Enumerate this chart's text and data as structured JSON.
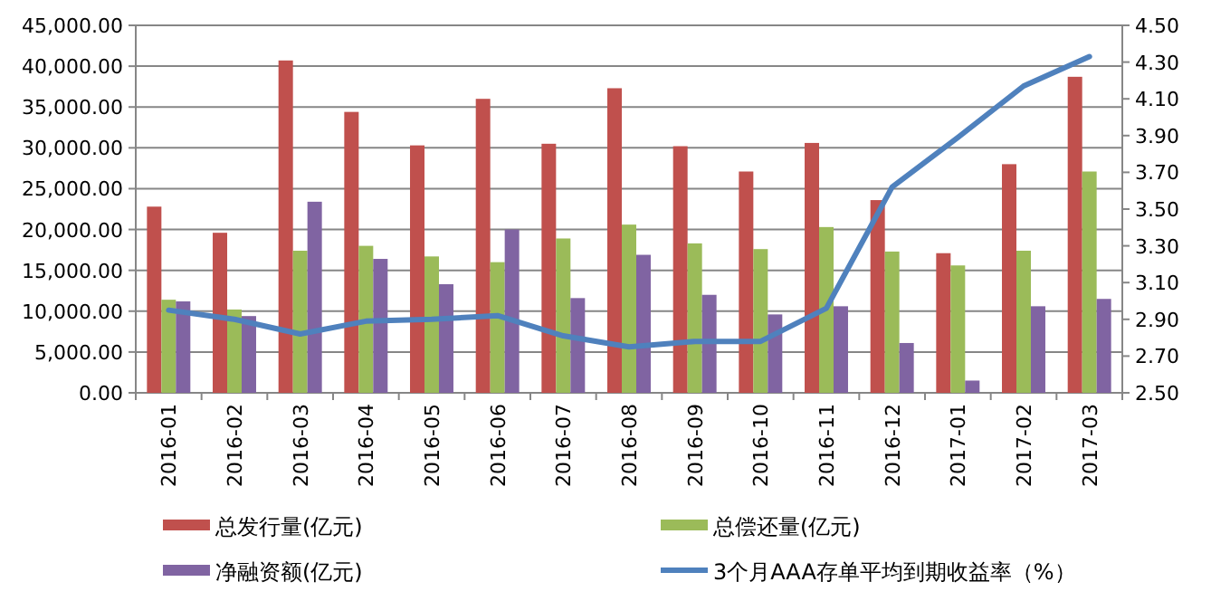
{
  "chart_data": {
    "type": "bar",
    "categories": [
      "2016-01",
      "2016-02",
      "2016-03",
      "2016-04",
      "2016-05",
      "2016-06",
      "2016-07",
      "2016-08",
      "2016-09",
      "2016-10",
      "2016-11",
      "2016-12",
      "2017-01",
      "2017-02",
      "2017-03"
    ],
    "series": [
      {
        "name": "总发行量(亿元)",
        "color": "#c0504d",
        "values": [
          22800,
          19600,
          40700,
          34400,
          30300,
          36000,
          30500,
          37300,
          30200,
          27100,
          30600,
          23600,
          17100,
          28000,
          38700
        ]
      },
      {
        "name": "总偿还量(亿元)",
        "color": "#9bbb59",
        "values": [
          11400,
          10200,
          17400,
          18000,
          16700,
          16000,
          18900,
          20600,
          18300,
          17600,
          20300,
          17300,
          15600,
          17400,
          27100
        ]
      },
      {
        "name": "净融资额(亿元)",
        "color": "#8064a2",
        "values": [
          11200,
          9400,
          23400,
          16400,
          13300,
          20000,
          11600,
          16900,
          12000,
          9600,
          10600,
          6100,
          1500,
          10600,
          11500
        ]
      },
      {
        "name": "3个月AAA存单平均到期收益率（%）",
        "color": "#4f81bd",
        "type": "line",
        "axis": "y2",
        "values": [
          2.95,
          2.9,
          2.82,
          2.89,
          2.9,
          2.92,
          2.81,
          2.75,
          2.78,
          2.78,
          2.96,
          3.62,
          3.89,
          4.17,
          4.33
        ]
      }
    ],
    "ylim": [
      0,
      45000
    ],
    "yticks": [
      {
        "value": 0,
        "label": "0.00"
      },
      {
        "value": 5000,
        "label": "5,000.00"
      },
      {
        "value": 10000,
        "label": "10,000.00"
      },
      {
        "value": 15000,
        "label": "15,000.00"
      },
      {
        "value": 20000,
        "label": "20,000.00"
      },
      {
        "value": 25000,
        "label": "25,000.00"
      },
      {
        "value": 30000,
        "label": "30,000.00"
      },
      {
        "value": 35000,
        "label": "35,000.00"
      },
      {
        "value": 40000,
        "label": "40,000.00"
      },
      {
        "value": 45000,
        "label": "45,000.00"
      }
    ],
    "y2lim": [
      2.5,
      4.5
    ],
    "y2ticks": [
      {
        "value": 2.5,
        "label": "2.50"
      },
      {
        "value": 2.7,
        "label": "2.70"
      },
      {
        "value": 2.9,
        "label": "2.90"
      },
      {
        "value": 3.1,
        "label": "3.10"
      },
      {
        "value": 3.3,
        "label": "3.30"
      },
      {
        "value": 3.5,
        "label": "3.50"
      },
      {
        "value": 3.7,
        "label": "3.70"
      },
      {
        "value": 3.9,
        "label": "3.90"
      },
      {
        "value": 4.1,
        "label": "4.10"
      },
      {
        "value": 4.3,
        "label": "4.30"
      },
      {
        "value": 4.5,
        "label": "4.50"
      }
    ],
    "grid": "y",
    "legend": "bottom",
    "marker": "none",
    "line_style": "solid"
  }
}
